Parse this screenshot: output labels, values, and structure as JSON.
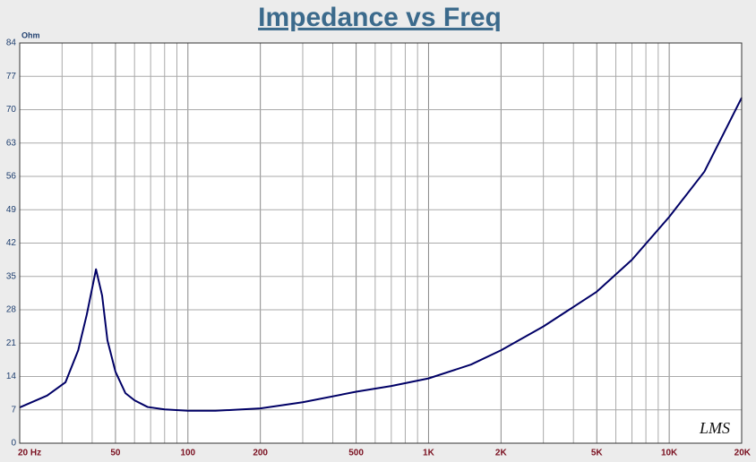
{
  "chart_data": {
    "type": "line",
    "title": "Impedance vs Freq",
    "y_unit": "Ohm",
    "annotation": "LMS",
    "x": [
      20,
      26,
      31,
      35,
      38,
      41.5,
      44,
      46.3,
      50,
      55,
      60,
      68,
      80,
      100,
      130,
      200,
      300,
      500,
      700,
      1000,
      1500,
      2000,
      3000,
      5000,
      7000,
      10000,
      14000,
      20000
    ],
    "values": [
      7.5,
      10,
      12.8,
      19.5,
      27,
      36.5,
      31,
      21.6,
      15,
      10.5,
      9,
      7.6,
      7.1,
      6.8,
      6.8,
      7.3,
      8.6,
      10.8,
      12,
      13.6,
      16.5,
      19.5,
      24.5,
      31.8,
      38.5,
      47.5,
      57,
      72.5
    ],
    "color": "#000066",
    "xscale": "log",
    "xlim": [
      20,
      20000
    ],
    "xticks": [
      {
        "value": 20,
        "label": "20 Hz"
      },
      50,
      100,
      200,
      500,
      {
        "value": 1000,
        "label": "1K"
      },
      {
        "value": 2000,
        "label": "2K"
      },
      {
        "value": 5000,
        "label": "5K"
      },
      {
        "value": 10000,
        "label": "10K"
      },
      {
        "value": 20000,
        "label": "20K"
      }
    ],
    "xminor": [
      30,
      40,
      60,
      70,
      80,
      90,
      300,
      400,
      600,
      700,
      800,
      900,
      3000,
      4000,
      6000,
      7000,
      8000,
      9000
    ],
    "ylim": [
      0,
      84
    ],
    "yticks": [
      0,
      7,
      14,
      21,
      28,
      35,
      42,
      49,
      56,
      63,
      70,
      77,
      84
    ],
    "grid": true
  }
}
